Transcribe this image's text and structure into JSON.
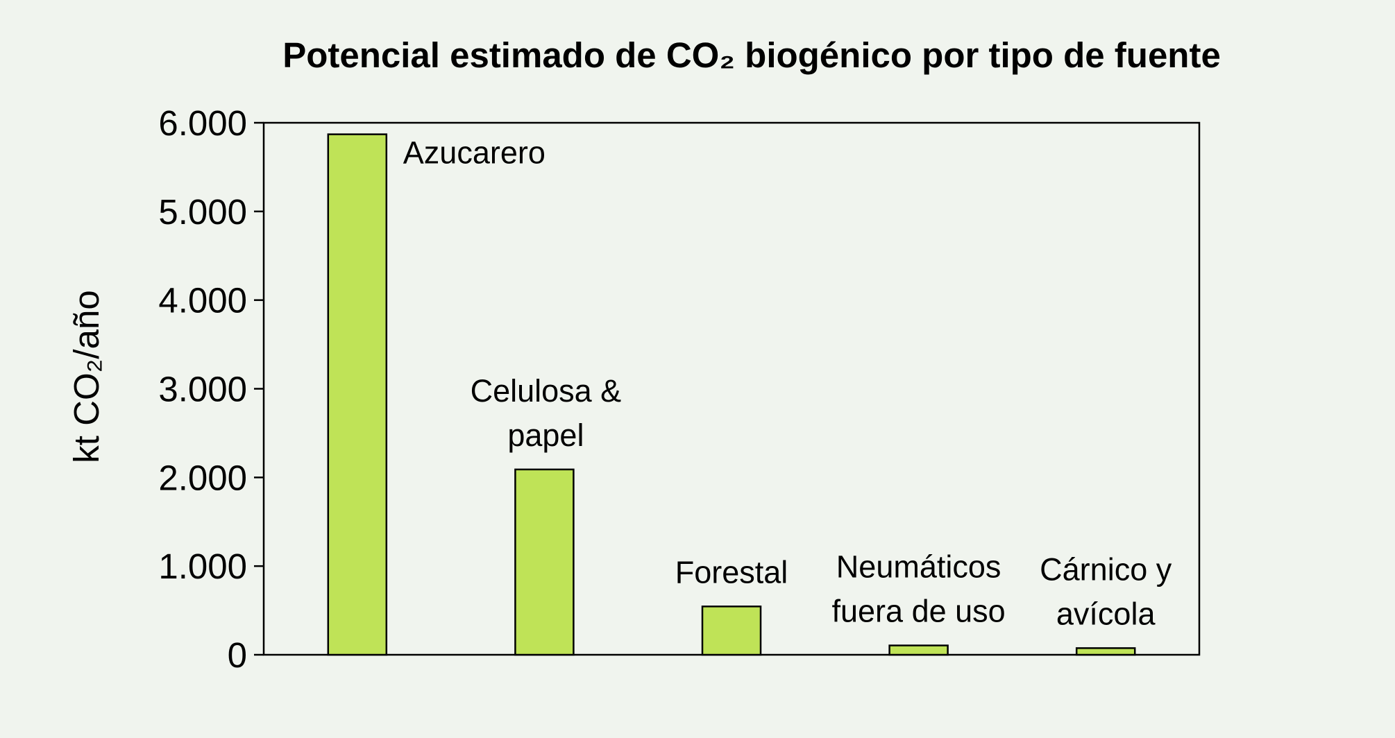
{
  "chart_data": {
    "type": "bar",
    "title": "Potencial estimado de CO₂ biogénico por tipo de fuente",
    "ylabel": "kt CO₂/año",
    "xlabel": "",
    "ylim": [
      0,
      6000
    ],
    "yticks": [
      0,
      1000,
      2000,
      3000,
      4000,
      5000,
      6000
    ],
    "ytick_labels": [
      "0",
      "1.000",
      "2.000",
      "3.000",
      "4.000",
      "5.000",
      "6.000"
    ],
    "grid": false,
    "legend": "none",
    "bar_color": "#bfe357",
    "bar_edge_color": "#000000",
    "background_color": "#f0f4ee",
    "categories": [
      {
        "lines": [
          "Azucarero"
        ],
        "value": 5870
      },
      {
        "lines": [
          "Celulosa &",
          "papel"
        ],
        "value": 2090
      },
      {
        "lines": [
          "Forestal"
        ],
        "value": 545
      },
      {
        "lines": [
          "Neumáticos",
          "fuera de uso"
        ],
        "value": 105
      },
      {
        "lines": [
          "Cárnico y",
          "avícola"
        ],
        "value": 75
      }
    ]
  }
}
